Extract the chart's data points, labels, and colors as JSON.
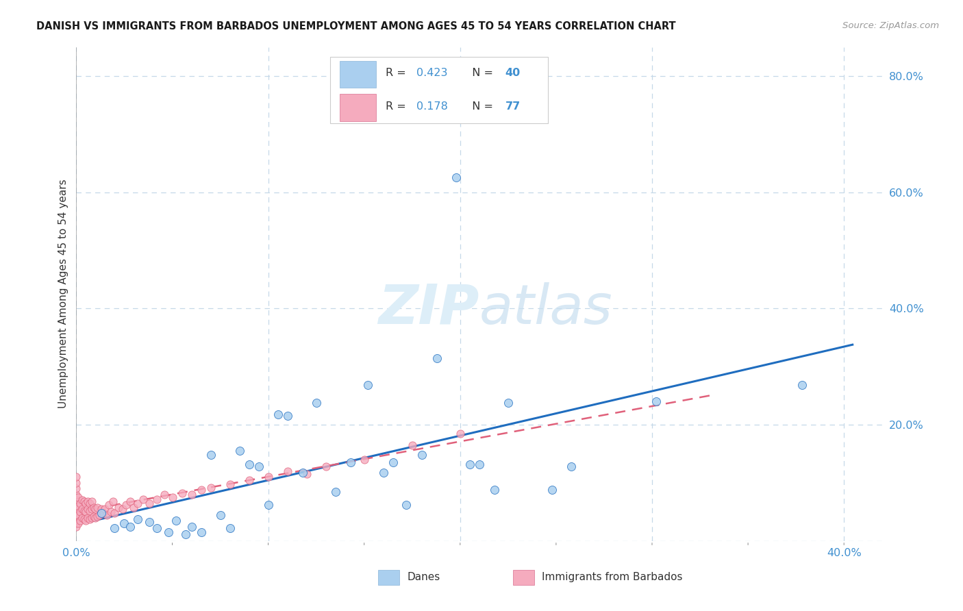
{
  "title": "DANISH VS IMMIGRANTS FROM BARBADOS UNEMPLOYMENT AMONG AGES 45 TO 54 YEARS CORRELATION CHART",
  "source": "Source: ZipAtlas.com",
  "ylabel": "Unemployment Among Ages 45 to 54 years",
  "xlim": [
    0.0,
    0.42
  ],
  "ylim": [
    0.0,
    0.85
  ],
  "danes_R": 0.423,
  "danes_N": 40,
  "immigrants_R": 0.178,
  "immigrants_N": 77,
  "danes_color": "#aacfef",
  "immigrants_color": "#f5abbe",
  "danes_line_color": "#1f6dbf",
  "immigrants_line_color": "#e0607a",
  "danes_x": [
    0.013,
    0.02,
    0.025,
    0.028,
    0.032,
    0.038,
    0.042,
    0.048,
    0.052,
    0.057,
    0.06,
    0.065,
    0.07,
    0.075,
    0.08,
    0.085,
    0.09,
    0.095,
    0.1,
    0.105,
    0.11,
    0.118,
    0.125,
    0.135,
    0.143,
    0.152,
    0.16,
    0.165,
    0.172,
    0.18,
    0.188,
    0.198,
    0.205,
    0.21,
    0.218,
    0.225,
    0.248,
    0.258,
    0.302,
    0.378
  ],
  "danes_y": [
    0.048,
    0.022,
    0.03,
    0.025,
    0.038,
    0.033,
    0.022,
    0.015,
    0.035,
    0.012,
    0.025,
    0.015,
    0.148,
    0.045,
    0.022,
    0.155,
    0.132,
    0.128,
    0.062,
    0.218,
    0.215,
    0.118,
    0.238,
    0.085,
    0.135,
    0.268,
    0.118,
    0.135,
    0.062,
    0.148,
    0.315,
    0.625,
    0.132,
    0.132,
    0.088,
    0.238,
    0.088,
    0.128,
    0.24,
    0.268
  ],
  "imm_x": [
    0.0,
    0.0,
    0.0,
    0.0,
    0.0,
    0.0,
    0.0,
    0.0,
    0.0,
    0.0,
    0.0,
    0.0,
    0.0,
    0.001,
    0.001,
    0.001,
    0.001,
    0.002,
    0.002,
    0.002,
    0.003,
    0.003,
    0.003,
    0.004,
    0.004,
    0.004,
    0.005,
    0.005,
    0.005,
    0.006,
    0.006,
    0.006,
    0.007,
    0.007,
    0.007,
    0.008,
    0.008,
    0.008,
    0.009,
    0.009,
    0.01,
    0.01,
    0.011,
    0.011,
    0.012,
    0.013,
    0.014,
    0.015,
    0.016,
    0.017,
    0.018,
    0.019,
    0.02,
    0.022,
    0.024,
    0.026,
    0.028,
    0.03,
    0.032,
    0.035,
    0.038,
    0.042,
    0.046,
    0.05,
    0.055,
    0.06,
    0.065,
    0.07,
    0.08,
    0.09,
    0.1,
    0.11,
    0.12,
    0.13,
    0.15,
    0.175,
    0.2
  ],
  "imm_y": [
    0.03,
    0.04,
    0.05,
    0.06,
    0.07,
    0.08,
    0.09,
    0.1,
    0.11,
    0.025,
    0.035,
    0.045,
    0.055,
    0.03,
    0.045,
    0.06,
    0.075,
    0.035,
    0.05,
    0.065,
    0.04,
    0.055,
    0.07,
    0.038,
    0.052,
    0.068,
    0.035,
    0.05,
    0.065,
    0.04,
    0.055,
    0.068,
    0.038,
    0.052,
    0.065,
    0.04,
    0.055,
    0.068,
    0.042,
    0.058,
    0.04,
    0.055,
    0.042,
    0.058,
    0.045,
    0.055,
    0.048,
    0.055,
    0.045,
    0.062,
    0.05,
    0.068,
    0.048,
    0.058,
    0.055,
    0.062,
    0.068,
    0.058,
    0.065,
    0.072,
    0.065,
    0.072,
    0.08,
    0.075,
    0.082,
    0.08,
    0.088,
    0.092,
    0.098,
    0.105,
    0.11,
    0.12,
    0.115,
    0.128,
    0.14,
    0.165,
    0.185
  ],
  "grid_color": "#c5d8e8",
  "background_color": "#ffffff",
  "tick_color": "#4090d0",
  "watermark_color": "#ddeef8"
}
